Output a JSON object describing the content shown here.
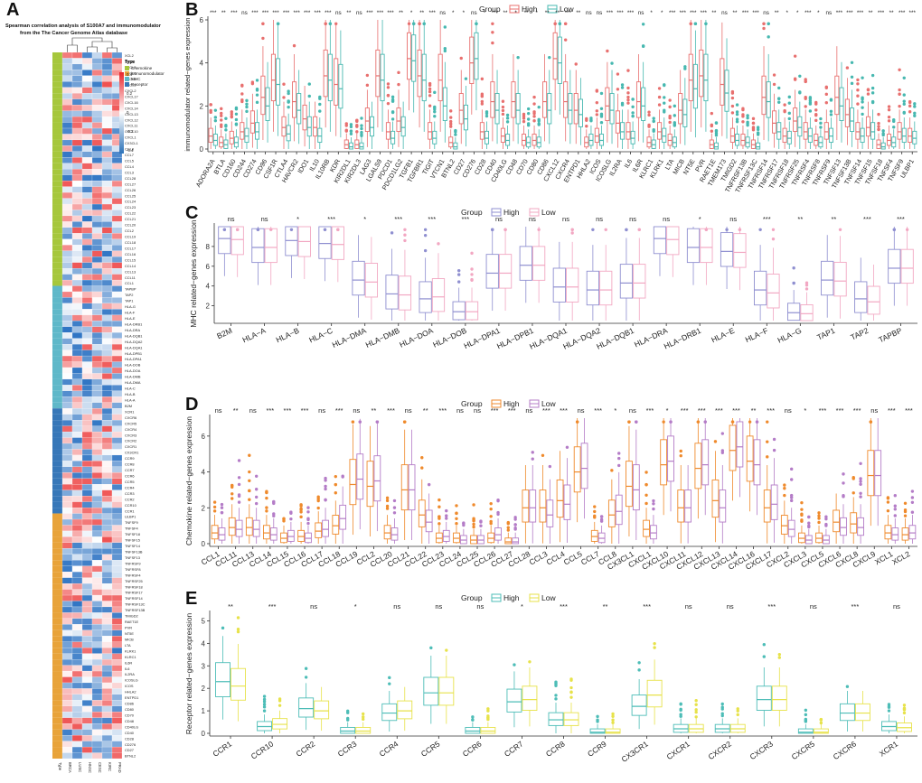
{
  "panel_letters": [
    "A",
    "B",
    "C",
    "D",
    "E"
  ],
  "heatmap": {
    "title_line1": "Spearman correlation analysis of S100A7 and immunomodulator",
    "title_line2": "from the The Cancer Genome Atlas database",
    "legend_title": "Type",
    "legend_items": [
      {
        "label": "Chemokine",
        "color": "#a6c73c"
      },
      {
        "label": "immunomodulator",
        "color": "#e8a33a"
      },
      {
        "label": "MHC",
        "color": "#5fb8c9"
      },
      {
        "label": "Receptor",
        "color": "#3777b8"
      }
    ],
    "scale_ticks": [
      "0.4",
      "0.2",
      "0",
      "-0.2",
      "-0.4"
    ],
    "col_labels": [
      "Type",
      "BRCA",
      "LUSC",
      "HNSC",
      "CESC",
      "KIRC",
      "PRAD"
    ],
    "row_labels": [
      "XCL2",
      "XCL1",
      "CXCL9",
      "CXCL6",
      "CXCL5",
      "CXCL3",
      "CXCL2",
      "CXCL17",
      "CXCL16",
      "CXCL14",
      "CXCL13",
      "CXCL12",
      "CXCL11",
      "CXCL10",
      "CXCL1",
      "CX3CL1",
      "CCL8",
      "CCL7",
      "CCL5",
      "CCL4",
      "CCL3",
      "CCL28",
      "CCL27",
      "CCL26",
      "CCL25",
      "CCL24",
      "CCL23",
      "CCL22",
      "CCL21",
      "CCL20",
      "CCL2",
      "CCL19",
      "CCL18",
      "CCL17",
      "CCL16",
      "CCL15",
      "CCL14",
      "CCL13",
      "CCL11",
      "CCL1",
      "TAPBP",
      "TAP2",
      "TAP1",
      "HLA-G",
      "HLA-F",
      "HLA-E",
      "HLA-DRB1",
      "HLA-DRA",
      "HLA-DQB1",
      "HLA-DQA2",
      "HLA-DQA1",
      "HLA-DPB1",
      "HLA-DPA1",
      "HLA-DOB",
      "HLA-DOA",
      "HLA-DMB",
      "HLA-DMA",
      "HLA-C",
      "HLA-B",
      "HLA-A",
      "B2M",
      "XCR1",
      "CXCR6",
      "CXCR5",
      "CXCR4",
      "CXCR3",
      "CXCR2",
      "CXCR1",
      "CX3CR1",
      "CCR9",
      "CCR8",
      "CCR7",
      "CCR6",
      "CCR5",
      "CCR4",
      "CCR3",
      "CCR2",
      "CCR10",
      "CCR1",
      "ULBP1",
      "TNFSF9",
      "TNFSF4",
      "TNFSF18",
      "TNFSF15",
      "TNFSF14",
      "TNFSF13B",
      "TNFSF13",
      "TNFRSF9",
      "TNFRSF8",
      "TNFRSF4",
      "TNFRSF25",
      "TNFRSF18",
      "TNFRSF17",
      "TNFRSF14",
      "TNFRSF13C",
      "TNFRSF13B",
      "TMIGD2",
      "RAET1E",
      "PVR",
      "NT5E",
      "MICB",
      "LTA",
      "KLRK1",
      "KLRC1",
      "IL6R",
      "IL6",
      "IL2RA",
      "ICOSLG",
      "ICOS",
      "HHLA2",
      "ENTPD1",
      "CD86",
      "CD80",
      "CD70",
      "CD48",
      "CD40LG",
      "CD40",
      "CD28",
      "CD276",
      "CD27",
      "BTNL2"
    ],
    "type_runs": [
      {
        "type": "Chemokine",
        "count": 40
      },
      {
        "type": "MHC",
        "count": 21
      },
      {
        "type": "Receptor",
        "count": 18
      },
      {
        "type": "immunomodulator",
        "count": 42
      }
    ]
  },
  "chart_data": [
    {
      "type": "box",
      "panel": "B",
      "legend_title": "Group",
      "groups": [
        {
          "name": "High",
          "color": "#e8706f"
        },
        {
          "name": "Low",
          "color": "#47b8b0"
        }
      ],
      "ylabel": "immunomodulator related−genes expression",
      "ylim": [
        0,
        6
      ],
      "yticks": [
        0,
        2,
        4,
        6
      ],
      "categories": [
        "ADORA2A",
        "BTLA",
        "CD160",
        "CD244",
        "CD274",
        "CD96",
        "CSF1R",
        "CTLA4",
        "HAVCR2",
        "IDO1",
        "IL10",
        "IL10RB",
        "KDR",
        "KIR2DL1",
        "KIR2DL3",
        "LAG3",
        "LGALS9",
        "PDCD1",
        "PDCD1LG2",
        "TGFB1",
        "TGFBR1",
        "TIGIT",
        "VTCN1",
        "BTNL2",
        "CD27",
        "CD276",
        "CD28",
        "CD40",
        "CD40LG",
        "CD48",
        "CD70",
        "CD80",
        "CD86",
        "CXCL12",
        "CXCR4",
        "ENTPD1",
        "HHLA2",
        "ICOS",
        "ICOSLG",
        "IL2RA",
        "IL6",
        "IL6R",
        "KLRC1",
        "KLRK1",
        "LTA",
        "MICB",
        "NT5E",
        "PVR",
        "RAET1E",
        "TMEM173",
        "TMIGD2",
        "TNFRSF13B",
        "TNFRSF13C",
        "TNFRSF14",
        "TNFRSF17",
        "TNFRSF18",
        "TNFRSF25",
        "TNFRSF4",
        "TNFRSF8",
        "TNFRSF9",
        "TNFSF13",
        "TNFSF13B",
        "TNFSF14",
        "TNFSF15",
        "TNFSF18",
        "TNFSF4",
        "TNFSF9",
        "ULBP1"
      ],
      "medians_high": [
        0.6,
        0.3,
        0.5,
        0.8,
        1.2,
        2.4,
        3.2,
        1.0,
        2.2,
        1.4,
        1.0,
        3.4,
        3.0,
        0.2,
        0.2,
        1.3,
        3.4,
        0.8,
        1.3,
        4.2,
        3.4,
        0.8,
        3.2,
        0.3,
        1.8,
        4.0,
        0.8,
        2.2,
        0.6,
        2.2,
        0.4,
        0.4,
        2.2,
        4.2,
        2.2,
        1.8,
        0.3,
        0.6,
        2.0,
        1.2,
        0.8,
        2.2,
        0.3,
        0.8,
        0.4,
        1.8,
        3.2,
        3.4,
        0.2,
        3.0,
        0.6,
        0.4,
        0.2,
        2.4,
        1.2,
        0.6,
        1.3,
        0.8,
        0.4,
        0.8,
        2.4,
        1.6,
        0.8,
        1.0,
        0.2,
        0.4,
        0.8,
        0.6
      ],
      "medians_low": [
        0.4,
        0.2,
        0.3,
        0.6,
        0.8,
        2.0,
        3.0,
        0.7,
        1.8,
        1.0,
        0.6,
        3.2,
        2.8,
        0.1,
        0.1,
        1.0,
        3.2,
        0.5,
        1.0,
        4.1,
        3.2,
        0.5,
        2.0,
        0.1,
        1.4,
        4.2,
        0.5,
        1.8,
        0.4,
        1.8,
        0.3,
        0.3,
        1.8,
        4.0,
        1.8,
        1.6,
        0.4,
        0.4,
        1.8,
        0.8,
        0.5,
        2.0,
        0.2,
        0.6,
        0.3,
        1.6,
        2.8,
        3.2,
        0.1,
        2.6,
        0.4,
        0.3,
        0.1,
        2.2,
        0.8,
        0.5,
        1.0,
        0.6,
        0.3,
        0.6,
        2.0,
        1.3,
        0.6,
        0.8,
        0.1,
        0.3,
        0.6,
        0.5
      ],
      "significance": [
        "***",
        "**",
        "***",
        "ns",
        "***",
        "***",
        "***",
        "***",
        "***",
        "***",
        "***",
        "***",
        "ns",
        "**",
        "ns",
        "***",
        "***",
        "***",
        "**",
        "*",
        "**",
        "***",
        "ns",
        "*",
        "*",
        "ns",
        "*",
        "***",
        "**",
        "*",
        "**",
        "*",
        "**",
        "**",
        "***",
        "**",
        "ns",
        "ns",
        "***",
        "***",
        "***",
        "ns",
        "*",
        "*",
        "***",
        "***",
        "***",
        "***",
        "**",
        "ns",
        "**",
        "***",
        "***",
        "ns",
        "**",
        "*",
        "*",
        "***",
        "*",
        "ns",
        "***",
        "***",
        "***",
        "**",
        "***",
        "**",
        "***",
        "***"
      ]
    },
    {
      "type": "box",
      "panel": "C",
      "legend_title": "Group",
      "groups": [
        {
          "name": "High",
          "color": "#8f8fd0"
        },
        {
          "name": "Low",
          "color": "#f2a7c2"
        }
      ],
      "ylabel": "MHC related−genes expression",
      "ylim": [
        0.5,
        10
      ],
      "yticks": [
        2,
        4,
        6,
        8
      ],
      "categories": [
        "B2M",
        "HLA−A",
        "HLA−B",
        "HLA−C",
        "HLA−DMA",
        "HLA−DMB",
        "HLA−DOA",
        "HLA−DOB",
        "HLA−DPA1",
        "HLA−DPB1",
        "HLA−DQA1",
        "HLA−DQA2",
        "HLA−DQB1",
        "HLA−DRA",
        "HLA−DRB1",
        "HLA−E",
        "HLA−F",
        "HLA−G",
        "TAP1",
        "TAP2",
        "TAPBP"
      ],
      "medians_high": [
        8.8,
        7.9,
        8.6,
        8.3,
        4.6,
        3.2,
        2.7,
        1.4,
        5.3,
        6.1,
        3.9,
        3.6,
        4.3,
        8.8,
        7.9,
        7.5,
        3.6,
        1.3,
        4.6,
        2.7,
        5.8
      ],
      "medians_low": [
        8.7,
        7.9,
        8.5,
        8.2,
        4.4,
        3.1,
        2.9,
        1.4,
        5.3,
        6.1,
        3.9,
        3.6,
        4.3,
        8.7,
        7.9,
        7.4,
        3.3,
        1.2,
        4.5,
        2.4,
        5.8
      ],
      "significance": [
        "ns",
        "ns",
        "*",
        "***",
        "*",
        "***",
        "***",
        "***",
        "ns",
        "ns",
        "ns",
        "ns",
        "ns",
        "ns",
        "*",
        "ns",
        "***",
        "**",
        "**",
        "***",
        "***"
      ]
    },
    {
      "type": "box",
      "panel": "D",
      "legend_title": "Group",
      "groups": [
        {
          "name": "High",
          "color": "#ef8a2c"
        },
        {
          "name": "Low",
          "color": "#b47cc7"
        }
      ],
      "ylabel": "Chemokine related−genes expression",
      "ylim": [
        0,
        7
      ],
      "yticks": [
        0,
        2,
        4,
        6
      ],
      "categories": [
        "CCL1",
        "CCL11",
        "CCL13",
        "CCL14",
        "CCL15",
        "CCL16",
        "CCL17",
        "CCL18",
        "CCL19",
        "CCL2",
        "CCL20",
        "CCL21",
        "CCL22",
        "CCL23",
        "CCL24",
        "CCL25",
        "CCL26",
        "CCL27",
        "CCL28",
        "CCL3",
        "CCL4",
        "CCL5",
        "CCL7",
        "CCL8",
        "CX3CL1",
        "CXCL1",
        "CXCL10",
        "CXCL11",
        "CXCL12",
        "CXCL13",
        "CXCL14",
        "CXCL16",
        "CXCL17",
        "CXCL2",
        "CXCL3",
        "CXCL5",
        "CXCL6",
        "CXCL8",
        "CXCL9",
        "XCL1",
        "XCL2"
      ],
      "medians_high": [
        0.6,
        0.9,
        0.9,
        0.6,
        0.3,
        0.4,
        0.7,
        1.0,
        3.3,
        3.2,
        0.6,
        3.0,
        1.6,
        0.3,
        0.3,
        0.2,
        0.3,
        0.1,
        2.0,
        2.0,
        2.4,
        4.0,
        0.4,
        1.6,
        3.2,
        0.8,
        4.4,
        2.0,
        4.2,
        2.4,
        5.2,
        4.6,
        2.0,
        1.0,
        0.3,
        0.3,
        1.2,
        1.1,
        3.8,
        0.6,
        0.5
      ],
      "medians_low": [
        0.5,
        0.8,
        0.8,
        0.5,
        0.4,
        0.3,
        0.8,
        1.4,
        3.6,
        3.5,
        0.5,
        3.0,
        1.2,
        0.4,
        0.2,
        0.2,
        0.5,
        0.1,
        2.0,
        1.6,
        2.2,
        4.2,
        0.3,
        1.8,
        3.0,
        0.6,
        4.6,
        2.0,
        4.4,
        2.0,
        5.4,
        4.4,
        2.2,
        0.8,
        0.2,
        0.2,
        0.9,
        0.9,
        3.8,
        0.5,
        0.6
      ],
      "significance": [
        "ns",
        "**",
        "ns",
        "***",
        "***",
        "***",
        "ns",
        "***",
        "ns",
        "**",
        "***",
        "ns",
        "**",
        "***",
        "ns",
        "ns",
        "***",
        "***",
        "ns",
        "***",
        "***",
        "ns",
        "***",
        "*",
        "ns",
        "***",
        "*",
        "***",
        "***",
        "***",
        "***",
        "**",
        "***",
        "ns",
        "*",
        "***",
        "***",
        "***",
        "ns",
        "***",
        "***"
      ]
    },
    {
      "type": "box",
      "panel": "E",
      "legend_title": "Group",
      "groups": [
        {
          "name": "High",
          "color": "#4dbdb7"
        },
        {
          "name": "Low",
          "color": "#e7e24a"
        }
      ],
      "ylabel": "Receptor related−genes expression",
      "ylim": [
        0,
        5.3
      ],
      "yticks": [
        0,
        1,
        2,
        3,
        4,
        5
      ],
      "categories": [
        "CCR1",
        "CCR10",
        "CCR2",
        "CCR3",
        "CCR4",
        "CCR5",
        "CCR6",
        "CCR7",
        "CCR8",
        "CCR9",
        "CX3CR1",
        "CXCR1",
        "CXCR2",
        "CXCR3",
        "CXCR5",
        "CXCR6",
        "XCR1"
      ],
      "medians_high": [
        2.3,
        0.3,
        1.1,
        0.1,
        0.9,
        1.8,
        0.1,
        1.4,
        0.6,
        0.05,
        1.2,
        0.2,
        0.2,
        1.5,
        0.05,
        0.9,
        0.3
      ],
      "medians_low": [
        2.1,
        0.4,
        1.0,
        0.1,
        1.0,
        1.8,
        0.1,
        1.5,
        0.6,
        0.05,
        1.7,
        0.2,
        0.2,
        1.5,
        0.05,
        0.9,
        0.25
      ],
      "significance": [
        "**",
        "***",
        "ns",
        "*",
        "ns",
        "ns",
        "ns",
        "*",
        "***",
        "**",
        "***",
        "ns",
        "ns",
        "***",
        "ns",
        "***",
        "ns"
      ]
    }
  ]
}
